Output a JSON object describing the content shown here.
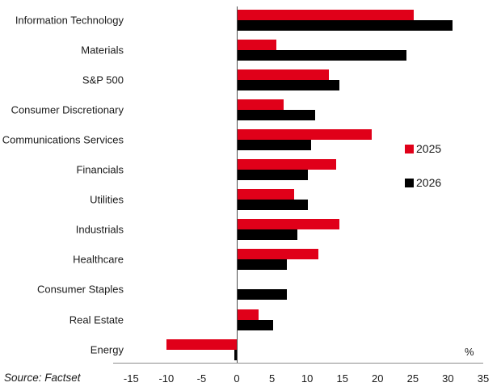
{
  "chart_data": {
    "type": "bar",
    "orientation": "horizontal",
    "categories": [
      "Information Technology",
      "Materials",
      "S&P 500",
      "Consumer Discretionary",
      "Communications Services",
      "Financials",
      "Utilities",
      "Industrials",
      "Healthcare",
      "Consumer Staples",
      "Real Estate",
      "Energy"
    ],
    "series": [
      {
        "name": "2025",
        "color": "#e00019",
        "values": [
          25,
          5.5,
          13,
          6.5,
          19,
          14,
          8,
          14.5,
          11.5,
          0,
          3,
          -10
        ]
      },
      {
        "name": "2026",
        "color": "#000000",
        "values": [
          30.5,
          24,
          14.5,
          11,
          10.5,
          10,
          10,
          8.5,
          7,
          7,
          5,
          -0.3
        ]
      }
    ],
    "x_ticks": [
      "-15",
      "-10",
      "-5",
      "0",
      "5",
      "10",
      "15",
      "20",
      "25",
      "30",
      "35"
    ],
    "xlim": [
      -15,
      35
    ],
    "xlabel": "%",
    "ylabel": "",
    "title": "",
    "grid": false,
    "legend_position": "right",
    "source": "Source: Factset"
  }
}
